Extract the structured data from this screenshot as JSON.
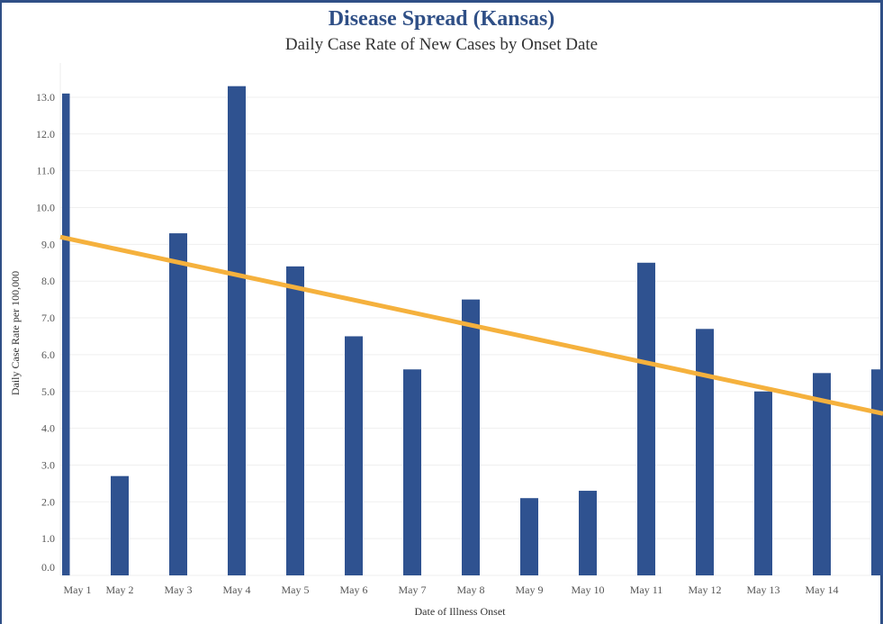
{
  "chart_data": {
    "type": "bar",
    "title": "Disease Spread (Kansas)",
    "subtitle": "Daily Case Rate of New Cases by Onset Date",
    "xlabel": "Date of Illness Onset",
    "ylabel": "Daily Case Rate per 100,000",
    "ylim": [
      0,
      13.3
    ],
    "grid": true,
    "categories": [
      "May 1",
      "May 2",
      "May 3",
      "May 4",
      "May 5",
      "May 6",
      "May 7",
      "May 8",
      "May 9",
      "May 10",
      "May 11",
      "May 12",
      "May 13",
      "May 14",
      ""
    ],
    "series": [
      {
        "name": "Daily Case Rate",
        "type": "bar",
        "color": "#2f5290",
        "values": [
          13.1,
          2.7,
          9.3,
          13.3,
          8.4,
          6.5,
          5.6,
          7.5,
          2.1,
          2.3,
          8.5,
          6.7,
          5.0,
          5.5,
          5.6
        ]
      },
      {
        "name": "Trend",
        "type": "line",
        "color": "#f5b13d",
        "start": 9.2,
        "end": 4.4
      }
    ],
    "yticks": [
      "0.0",
      "1.0",
      "2.0",
      "3.0",
      "4.0",
      "5.0",
      "6.0",
      "7.0",
      "8.0",
      "9.0",
      "10.0",
      "11.0",
      "12.0",
      "13.0"
    ]
  }
}
